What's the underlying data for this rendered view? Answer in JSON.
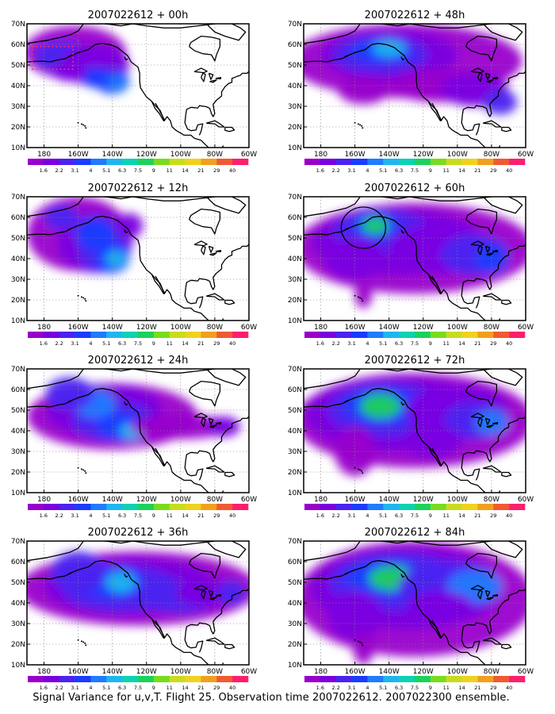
{
  "caption": "Signal Variance for u,v,T. Flight 25. Observation time 2007022612. 2007022300 ensemble.",
  "chart_data": [
    {
      "type": "heatmap",
      "title": "2007022612 + 00h",
      "lead_hours": 0
    },
    {
      "type": "heatmap",
      "title": "2007022612 + 12h",
      "lead_hours": 12
    },
    {
      "type": "heatmap",
      "title": "2007022612 + 24h",
      "lead_hours": 24
    },
    {
      "type": "heatmap",
      "title": "2007022612 + 36h",
      "lead_hours": 36
    },
    {
      "type": "heatmap",
      "title": "2007022612 + 48h",
      "lead_hours": 48
    },
    {
      "type": "heatmap",
      "title": "2007022612 + 60h",
      "lead_hours": 60
    },
    {
      "type": "heatmap",
      "title": "2007022612 + 72h",
      "lead_hours": 72
    },
    {
      "type": "heatmap",
      "title": "2007022612 + 84h",
      "lead_hours": 84
    }
  ],
  "axes": {
    "x_ticks": [
      "180",
      "160W",
      "140W",
      "120W",
      "100W",
      "80W",
      "60W"
    ],
    "x_values": [
      -180,
      -160,
      -140,
      -120,
      -100,
      -80,
      -60
    ],
    "y_ticks": [
      "10N",
      "20N",
      "30N",
      "40N",
      "50N",
      "60N",
      "70N"
    ],
    "y_values": [
      10,
      20,
      30,
      40,
      50,
      60,
      70
    ],
    "xlim": [
      -190,
      -60
    ],
    "ylim": [
      10,
      70
    ],
    "grid": true
  },
  "colorbar": {
    "labels": [
      "1.6",
      "2.2",
      "3.1",
      "4",
      "5.1",
      "6.3",
      "7.5",
      "9",
      "11",
      "14",
      "21",
      "29",
      "40"
    ],
    "colors": [
      "#9900cc",
      "#7a00e0",
      "#4b22f0",
      "#1a3cff",
      "#1f7bff",
      "#1fb6f0",
      "#0ad2b2",
      "#1ad25c",
      "#78dc1e",
      "#c8dc1e",
      "#f0d21e",
      "#f0a01e",
      "#f05a32",
      "#ff1e6e"
    ]
  }
}
